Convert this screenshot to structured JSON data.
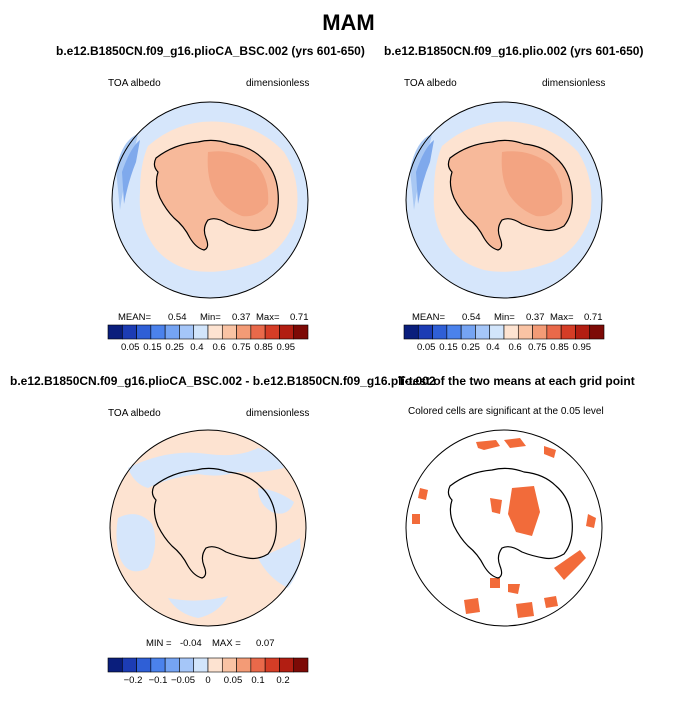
{
  "title": "MAM",
  "panels": [
    {
      "id": "top-left",
      "title": "b.e12.B1850CN.f09_g16.plioCA_BSC.002 (yrs 601-650)",
      "left_label": "TOA albedo",
      "right_label": "dimensionless",
      "stats": {
        "mean_label": "MEAN=",
        "mean": "0.54",
        "min_label": "Min=",
        "min": "0.37",
        "max_label": "Max=",
        "max": "0.71"
      },
      "colorbar": {
        "colors": [
          "#0a1e7c",
          "#1c3cb4",
          "#2f5fd6",
          "#4b82ec",
          "#75a4f3",
          "#a5c6f8",
          "#d2e5fb",
          "#fde3d1",
          "#f9c3a4",
          "#f39b76",
          "#e9694a",
          "#d53d26",
          "#b21e12",
          "#7d0a06"
        ],
        "labels": [
          "0.05",
          "0.15",
          "0.25",
          "0.4",
          "0.6",
          "0.75",
          "0.85",
          "0.95"
        ]
      }
    },
    {
      "id": "top-right",
      "title": "b.e12.B1850CN.f09_g16.plio.002 (yrs 601-650)",
      "left_label": "TOA albedo",
      "right_label": "dimensionless",
      "stats": {
        "mean_label": "MEAN=",
        "mean": "0.54",
        "min_label": "Min=",
        "min": "0.37",
        "max_label": "Max=",
        "max": "0.71"
      },
      "colorbar": {
        "colors": [
          "#0a1e7c",
          "#1c3cb4",
          "#2f5fd6",
          "#4b82ec",
          "#75a4f3",
          "#a5c6f8",
          "#d2e5fb",
          "#fde3d1",
          "#f9c3a4",
          "#f39b76",
          "#e9694a",
          "#d53d26",
          "#b21e12",
          "#7d0a06"
        ],
        "labels": [
          "0.05",
          "0.15",
          "0.25",
          "0.4",
          "0.6",
          "0.75",
          "0.85",
          "0.95"
        ]
      }
    },
    {
      "id": "bottom-left",
      "title": "b.e12.B1850CN.f09_g16.plioCA_BSC.002 - b.e12.B1850CN.f09_g16.plio.002",
      "left_label": "TOA albedo",
      "right_label": "dimensionless",
      "stats": {
        "min_label": "MIN =",
        "min": "-0.04",
        "max_label": "MAX =",
        "max": "0.07"
      },
      "colorbar": {
        "colors": [
          "#0a1e7c",
          "#1c3cb4",
          "#2f5fd6",
          "#4b82ec",
          "#75a4f3",
          "#a5c6f8",
          "#d2e5fb",
          "#fde3d1",
          "#f9c3a4",
          "#f39b76",
          "#e9694a",
          "#d53d26",
          "#b21e12",
          "#7d0a06"
        ],
        "labels": [
          "−0.2",
          "−0.1",
          "−0.05",
          "0",
          "0.05",
          "0.1",
          "0.2"
        ]
      }
    },
    {
      "id": "bottom-right",
      "title": "T-test of the two means at each grid point",
      "subtitle": "Colored cells are significant at the 0.05 level"
    }
  ],
  "colors": {
    "ocean_light": "#d6e6fb",
    "ocean_blue": "#a9c8f3",
    "ocean_deep": "#7fa9ec",
    "ice_pale": "#fde3d1",
    "land_salmon": "#f7b99a",
    "land_darker": "#f3a482",
    "diff_pos": "#fde3d1",
    "diff_neg": "#d6e6fb",
    "sig": "#f26b3a"
  }
}
